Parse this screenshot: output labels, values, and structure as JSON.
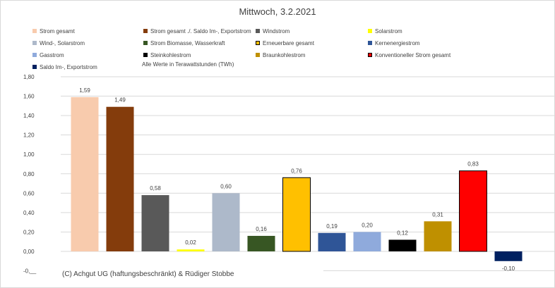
{
  "chart_data": {
    "type": "bar",
    "title": "Mittwoch,  3.2.2021",
    "subtitle": "Alle Werte in Terawattstunden (TWh)",
    "xlabel": "",
    "ylabel": "",
    "ylim": [
      -0.2,
      1.8
    ],
    "yticks": [
      {
        "value": 1.8,
        "label": "1,80"
      },
      {
        "value": 1.6,
        "label": "1,60"
      },
      {
        "value": 1.4,
        "label": "1,40"
      },
      {
        "value": 1.2,
        "label": "1,20"
      },
      {
        "value": 1.0,
        "label": "1,00"
      },
      {
        "value": 0.8,
        "label": "0,80"
      },
      {
        "value": 0.6,
        "label": "0,60"
      },
      {
        "value": 0.4,
        "label": "0,40"
      },
      {
        "value": 0.2,
        "label": "0,20"
      },
      {
        "value": 0.0,
        "label": "0,00"
      },
      {
        "value": -0.2,
        "label": "-0,__"
      }
    ],
    "grid": true,
    "legend_position": "top",
    "categories": [
      "Strom gesamt",
      "Strom gesamt ./. Saldo Im-, Exportstrom",
      "Windstrom",
      "Solarstrom",
      "Wind-, Solarstrom",
      "Strom Biomasse, Wasserkraft",
      "Erneuerbare gesamt",
      "Kernenergiestrom",
      "Gasstrom",
      "Steinkohlestrom",
      "Braunkohlestrom",
      "Konventioneller Strom gesamt",
      "Saldo Im-, Exportstrom"
    ],
    "values": [
      1.59,
      1.49,
      0.58,
      0.02,
      0.6,
      0.16,
      0.76,
      0.19,
      0.2,
      0.12,
      0.31,
      0.83,
      -0.1
    ],
    "value_labels": [
      "1,59",
      "1,49",
      "0,58",
      "0,02",
      "0,60",
      "0,16",
      "0,76",
      "0,19",
      "0,20",
      "0,12",
      "0,31",
      "0,83",
      "-0,10"
    ],
    "colors": [
      "#f8cbad",
      "#843c0c",
      "#595959",
      "#ffff00",
      "#adb9ca",
      "#375623",
      "#ffc000",
      "#2f5597",
      "#8faadc",
      "#000000",
      "#bf9000",
      "#ff0000",
      "#002060"
    ],
    "outlined": [
      false,
      false,
      false,
      false,
      false,
      false,
      true,
      false,
      false,
      false,
      false,
      true,
      false
    ]
  },
  "footer": {
    "credit": "(C) Achgut UG (haftungsbeschränkt) & Rüdiger Stobbe"
  }
}
